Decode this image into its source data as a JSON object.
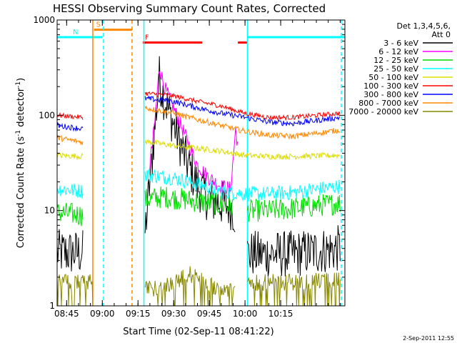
{
  "chart_data": {
    "type": "line",
    "title": "HESSI Observing Summary Count Rates, Corrected",
    "xlabel": "Start Time (02-Sep-11 08:41:22)",
    "ylabel": "Corrected Count Rate (s",
    "ylabel_sup1": "-1",
    "ylabel_mid": " detector",
    "ylabel_sup2": "-1",
    "ylabel_end": ")",
    "xlim_min": [
      41,
      162
    ],
    "ylim": [
      1,
      1000
    ],
    "yscale": "log",
    "xticks": [
      {
        "min": 45,
        "label": "08:45"
      },
      {
        "min": 60,
        "label": "09:00"
      },
      {
        "min": 75,
        "label": "09:15"
      },
      {
        "min": 90,
        "label": "09:30"
      },
      {
        "min": 105,
        "label": "09:45"
      },
      {
        "min": 120,
        "label": "10:00"
      },
      {
        "min": 135,
        "label": "10:15"
      }
    ],
    "yticks": [
      {
        "value": 1,
        "label": "1"
      },
      {
        "value": 10,
        "label": "10"
      },
      {
        "value": 100,
        "label": "100"
      },
      {
        "value": 1000,
        "label": "1000"
      }
    ],
    "legend": {
      "header1": "Det 1,3,4,5,6,",
      "header2": "Att 0",
      "placement": "right"
    },
    "series": [
      {
        "name": "3 - 6 keV",
        "color": "#000000",
        "noise": 0.25,
        "points": [
          [
            41,
            3.6
          ],
          [
            52,
            3.6
          ],
          [
            null,
            null
          ],
          [
            78,
            6
          ],
          [
            80,
            20
          ],
          [
            82,
            70
          ],
          [
            84,
            250
          ],
          [
            86,
            150
          ],
          [
            90,
            80
          ],
          [
            95,
            35
          ],
          [
            100,
            18
          ],
          [
            105,
            13
          ],
          [
            110,
            12
          ],
          [
            114,
            11
          ],
          [
            116,
            9
          ],
          [
            null,
            null
          ],
          [
            121,
            3.5
          ],
          [
            140,
            3.5
          ],
          [
            160,
            4
          ]
        ]
      },
      {
        "name": "6 - 12 keV",
        "color": "#ff00ff",
        "noise": 0.08,
        "points": [
          [
            80,
            30
          ],
          [
            82,
            80
          ],
          [
            84,
            330
          ],
          [
            86,
            200
          ],
          [
            90,
            120
          ],
          [
            95,
            60
          ],
          [
            100,
            30
          ],
          [
            105,
            22
          ],
          [
            110,
            18
          ],
          [
            114,
            17
          ],
          [
            116,
            70
          ],
          [
            117,
            50
          ]
        ]
      },
      {
        "name": "12 - 25 keV",
        "color": "#00dd00",
        "noise": 0.12,
        "points": [
          [
            41,
            9.5
          ],
          [
            52,
            9
          ],
          [
            null,
            null
          ],
          [
            78,
            13
          ],
          [
            86,
            14
          ],
          [
            95,
            13
          ],
          [
            105,
            12
          ],
          [
            115,
            11
          ],
          [
            null,
            null
          ],
          [
            121,
            10
          ],
          [
            130,
            10
          ],
          [
            140,
            10.5
          ],
          [
            160,
            12
          ]
        ]
      },
      {
        "name": "25 - 50 keV",
        "color": "#00ffff",
        "noise": 0.08,
        "points": [
          [
            41,
            17
          ],
          [
            52,
            16
          ],
          [
            null,
            null
          ],
          [
            78,
            24
          ],
          [
            90,
            22
          ],
          [
            100,
            19
          ],
          [
            110,
            16
          ],
          [
            120,
            15
          ],
          [
            130,
            15
          ],
          [
            140,
            15.5
          ],
          [
            160,
            18
          ]
        ]
      },
      {
        "name": "50 - 100 keV",
        "color": "#dddd00",
        "noise": 0.03,
        "points": [
          [
            41,
            38
          ],
          [
            52,
            37
          ],
          [
            null,
            null
          ],
          [
            78,
            53
          ],
          [
            90,
            48
          ],
          [
            100,
            45
          ],
          [
            110,
            42
          ],
          [
            120,
            38
          ],
          [
            130,
            37
          ],
          [
            140,
            37
          ],
          [
            160,
            38
          ]
        ]
      },
      {
        "name": "100 - 300 keV",
        "color": "#ff0000",
        "noise": 0.025,
        "points": [
          [
            41,
            100
          ],
          [
            52,
            95
          ],
          [
            null,
            null
          ],
          [
            78,
            170
          ],
          [
            90,
            160
          ],
          [
            100,
            140
          ],
          [
            110,
            125
          ],
          [
            120,
            105
          ],
          [
            130,
            95
          ],
          [
            140,
            95
          ],
          [
            160,
            105
          ]
        ]
      },
      {
        "name": "300 - 800 keV",
        "color": "#0000ff",
        "noise": 0.03,
        "points": [
          [
            41,
            78
          ],
          [
            52,
            72
          ],
          [
            null,
            null
          ],
          [
            78,
            150
          ],
          [
            90,
            140
          ],
          [
            100,
            120
          ],
          [
            110,
            105
          ],
          [
            120,
            95
          ],
          [
            130,
            85
          ],
          [
            140,
            82
          ],
          [
            160,
            95
          ]
        ]
      },
      {
        "name": "800 - 7000 keV",
        "color": "#ff8800",
        "noise": 0.03,
        "points": [
          [
            41,
            58
          ],
          [
            52,
            52
          ],
          [
            null,
            null
          ],
          [
            78,
            120
          ],
          [
            90,
            105
          ],
          [
            100,
            90
          ],
          [
            110,
            78
          ],
          [
            120,
            68
          ],
          [
            130,
            62
          ],
          [
            140,
            60
          ],
          [
            160,
            70
          ]
        ]
      },
      {
        "name": "7000 - 20000 keV",
        "color": "#888800",
        "noise": 0,
        "points": [
          [
            41,
            1.8
          ],
          [
            56,
            1.8
          ],
          [
            null,
            null
          ],
          [
            78,
            1.5
          ],
          [
            85,
            1.6
          ],
          [
            90,
            1.8
          ],
          [
            97,
            2.2
          ],
          [
            103,
            1.8
          ],
          [
            110,
            1.5
          ],
          [
            116,
            1.5
          ],
          [
            null,
            null
          ],
          [
            121,
            1.8
          ],
          [
            140,
            1.8
          ],
          [
            160,
            1.9
          ]
        ]
      }
    ],
    "annotations": {
      "modes": [
        {
          "label": "S",
          "color": "#ff8800",
          "min_start": 56.5,
          "min_end": 72.5,
          "value": 790
        },
        {
          "label": "N",
          "color": "#00ffff",
          "min_start": 41,
          "min_end": 60,
          "value": 660
        },
        {
          "label": "F",
          "color": "#ff0000",
          "min_start": 77,
          "min_end": 102,
          "value": 580
        },
        {
          "label": "",
          "color": "#00ffff",
          "min_start": 121,
          "min_end": 162,
          "value": 660
        },
        {
          "label": "",
          "color": "#ff0000",
          "min_start": 117,
          "min_end": 121,
          "value": 580
        }
      ],
      "vlines": [
        {
          "min": 56,
          "color": "#ff8800",
          "dash": false
        },
        {
          "min": 60.5,
          "color": "#00ffff",
          "dash": true
        },
        {
          "min": 72.5,
          "color": "#ff8800",
          "dash": true
        },
        {
          "min": 77.5,
          "color": "#00ffff",
          "dash": false
        },
        {
          "min": 121,
          "color": "#00ffff",
          "dash": false
        },
        {
          "min": 160.5,
          "color": "#00ffff",
          "dash": true
        }
      ]
    },
    "footer": "2-Sep-2011 12:55"
  }
}
